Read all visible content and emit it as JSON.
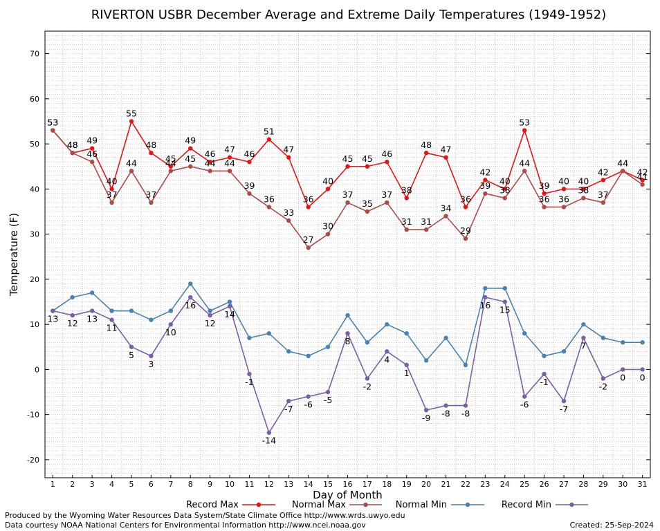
{
  "chart_data": {
    "type": "line",
    "title": "RIVERTON USBR December Average and Extreme Daily Temperatures (1949-1952)",
    "xlabel": "Day of Month",
    "ylabel": "Temperature (F)",
    "x": [
      1,
      2,
      3,
      4,
      5,
      6,
      7,
      8,
      9,
      10,
      11,
      12,
      13,
      14,
      15,
      16,
      17,
      18,
      19,
      20,
      21,
      22,
      23,
      24,
      25,
      26,
      27,
      28,
      29,
      30,
      31
    ],
    "ylim": [
      -24,
      75
    ],
    "yticks": [
      -20,
      -10,
      0,
      10,
      20,
      30,
      40,
      50,
      60,
      70
    ],
    "grid": true,
    "legend_position": "bottom",
    "series": [
      {
        "name": "Record Max",
        "color": "#ee1111",
        "label_pos": "above",
        "values": [
          53,
          48,
          49,
          40,
          55,
          48,
          45,
          49,
          46,
          47,
          46,
          51,
          47,
          36,
          40,
          45,
          45,
          46,
          38,
          48,
          47,
          36,
          42,
          40,
          53,
          39,
          40,
          40,
          42,
          44,
          42
        ]
      },
      {
        "name": "Normal Max",
        "color": "#b04848",
        "label_pos": "above",
        "values": [
          53,
          48,
          46,
          37,
          44,
          37,
          44,
          45,
          44,
          44,
          39,
          36,
          33,
          27,
          30,
          37,
          35,
          37,
          31,
          31,
          34,
          29,
          39,
          38,
          44,
          36,
          36,
          38,
          37,
          44,
          41
        ]
      },
      {
        "name": "Normal Min",
        "color": "#4682b4",
        "label_pos": "none",
        "values": [
          13,
          16,
          17,
          13,
          13,
          11,
          13,
          19,
          13,
          15,
          7,
          8,
          4,
          3,
          5,
          12,
          6,
          10,
          8,
          2,
          7,
          1,
          18,
          18,
          8,
          3,
          4,
          10,
          7,
          6,
          6
        ]
      },
      {
        "name": "Record Min",
        "color": "#7b5ea8",
        "label_pos": "below",
        "values": [
          13,
          12,
          13,
          11,
          5,
          3,
          10,
          16,
          12,
          14,
          -1,
          -14,
          -7,
          -6,
          -5,
          8,
          -2,
          4,
          1,
          -9,
          -8,
          -8,
          16,
          15,
          -6,
          -1,
          -7,
          7,
          -2,
          0,
          0
        ]
      }
    ]
  },
  "footer": {
    "left_line1": "Produced by the Wyoming Water Resources Data System/State Climate Office http://www.wrds.uwyo.edu",
    "left_line2": "Data courtesy NOAA National Centers for Environmental Information http://www.ncei.noaa.gov",
    "right": "Created:  25-Sep-2024"
  }
}
